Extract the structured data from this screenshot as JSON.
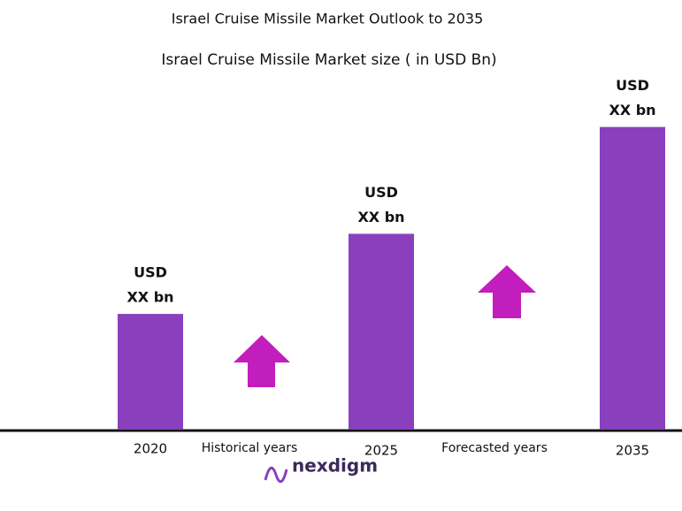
{
  "chart_data": {
    "type": "bar",
    "title": "Israel Cruise Missile Market Outlook to 2035",
    "subtitle": "Israel Cruise Missile  Market  size ( in USD Bn)",
    "categories": [
      "2020",
      "2025",
      "2035"
    ],
    "values": [
      1.3,
      2.2,
      3.4
    ],
    "value_labels": [
      [
        "USD",
        "XX bn"
      ],
      [
        "USD",
        "XX bn"
      ],
      [
        "USD",
        "XX bn"
      ]
    ],
    "color": "#8a3fbd",
    "ylim": [
      0,
      4.3
    ],
    "annotations": [
      "Historical years",
      "Forecasted years"
    ],
    "brand": "nexdigm"
  }
}
